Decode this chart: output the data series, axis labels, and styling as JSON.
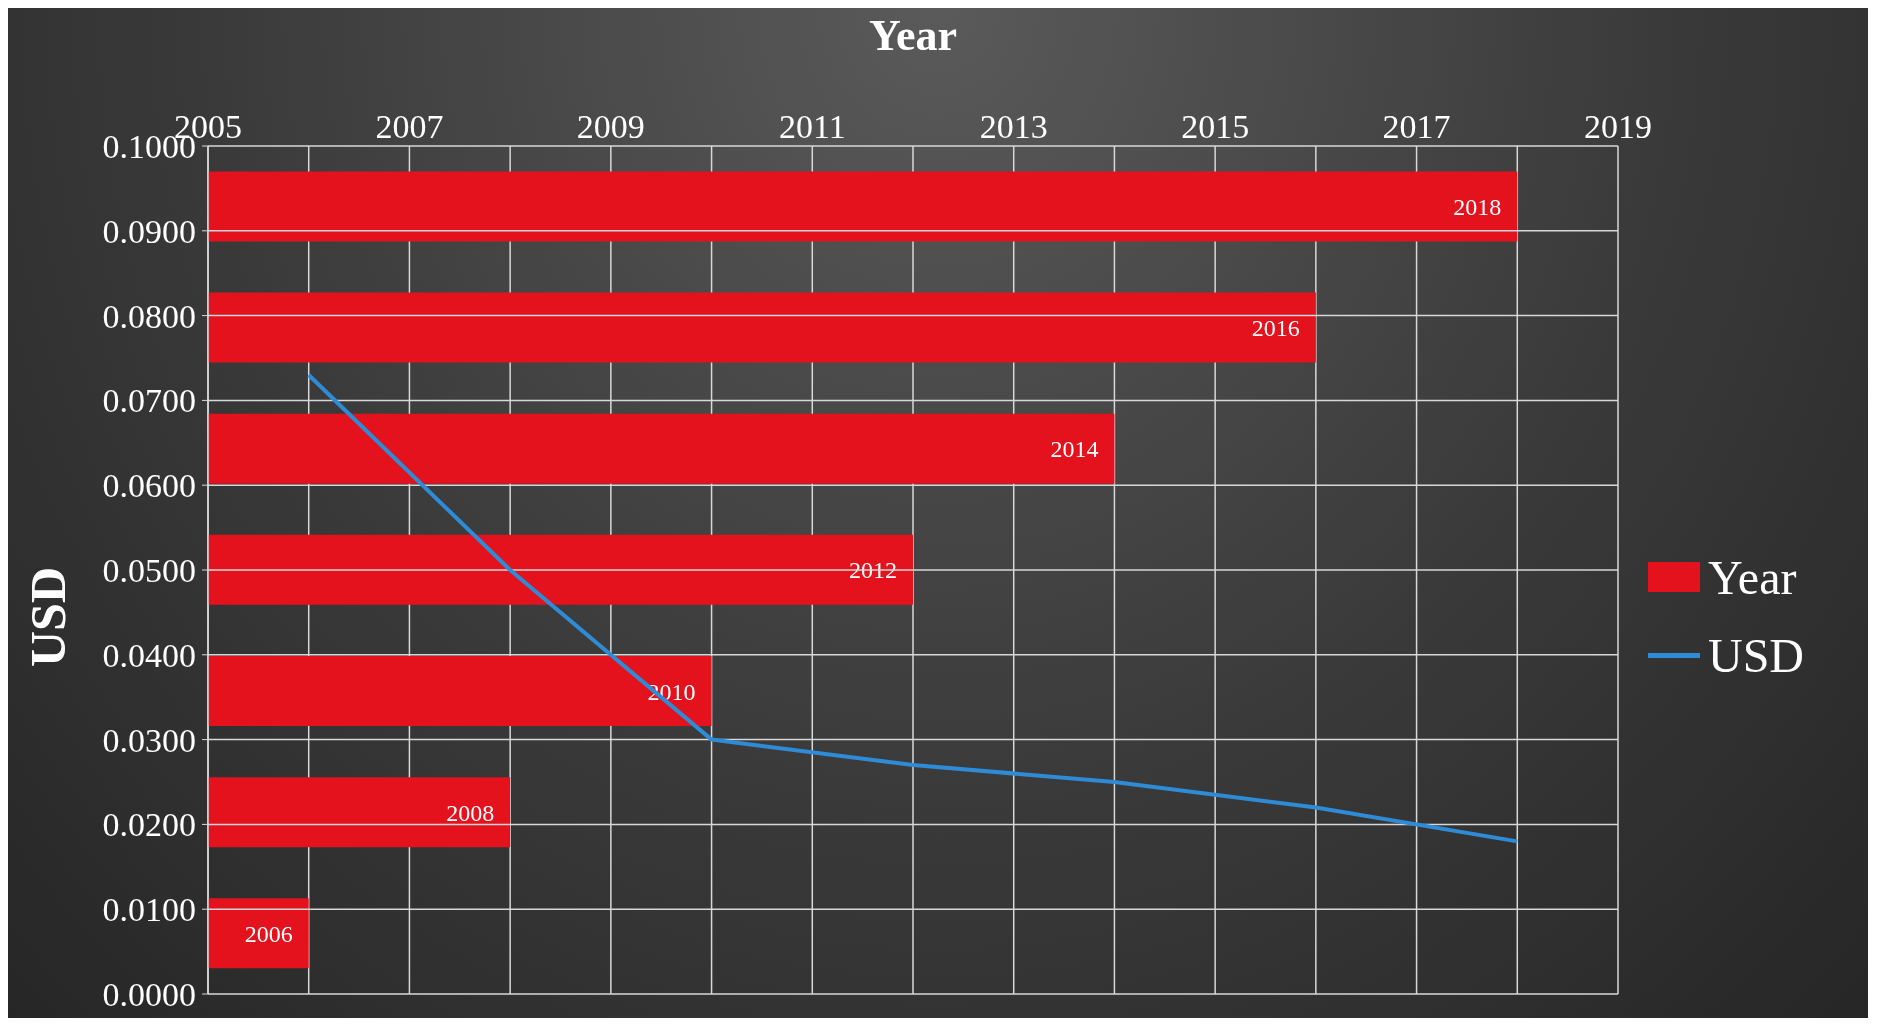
{
  "chart_data": [
    {
      "type": "bar",
      "orientation": "horizontal",
      "xlabel": "Year",
      "categories": [
        null,
        null,
        null,
        null,
        null,
        null,
        null
      ],
      "series": [
        {
          "name": "Year",
          "color": "#e3121c",
          "values": [
            2018,
            2016,
            2014,
            2012,
            2010,
            2008,
            2006
          ]
        }
      ],
      "xlim": [
        2005,
        2019
      ],
      "xticks": [
        2005,
        {
          "value": 2006,
          "label": null
        },
        2007,
        {
          "value": 2008,
          "label": null
        },
        2009,
        {
          "value": 2010,
          "label": null
        },
        2011,
        {
          "value": 2012,
          "label": null
        },
        2013,
        {
          "value": 2014,
          "label": null
        },
        2015,
        {
          "value": 2016,
          "label": null
        },
        2017,
        {
          "value": 2018,
          "label": null
        },
        2019
      ],
      "tick_labels": "x",
      "data_labels": true,
      "grid": "x",
      "legend": "right"
    },
    {
      "type": "line",
      "ylabel": "USD",
      "series": [
        {
          "name": "USD",
          "color": "#2e8bd6",
          "x": [
            2006,
            2008,
            2010,
            2012,
            2014,
            2016,
            2018
          ],
          "values": [
            0.073,
            0.05,
            0.03,
            0.027,
            0.025,
            0.022,
            0.018
          ]
        }
      ],
      "xlim": [
        2005,
        2019
      ],
      "ylim": [
        0,
        0.1
      ],
      "yticks": [
        {
          "value": 0,
          "label": "0.0000"
        },
        {
          "value": 0.01,
          "label": "0.0100"
        },
        {
          "value": 0.02,
          "label": "0.0200"
        },
        {
          "value": 0.03,
          "label": "0.0300"
        },
        {
          "value": 0.04,
          "label": "0.0400"
        },
        {
          "value": 0.05,
          "label": "0.0500"
        },
        {
          "value": 0.06,
          "label": "0.0600"
        },
        {
          "value": 0.07,
          "label": "0.0700"
        },
        {
          "value": 0.08,
          "label": "0.0800"
        },
        {
          "value": 0.09,
          "label": "0.0900"
        },
        {
          "value": 0.1,
          "label": "0.1000"
        }
      ],
      "tick_labels": "y",
      "grid": "y",
      "legend": "right"
    }
  ]
}
